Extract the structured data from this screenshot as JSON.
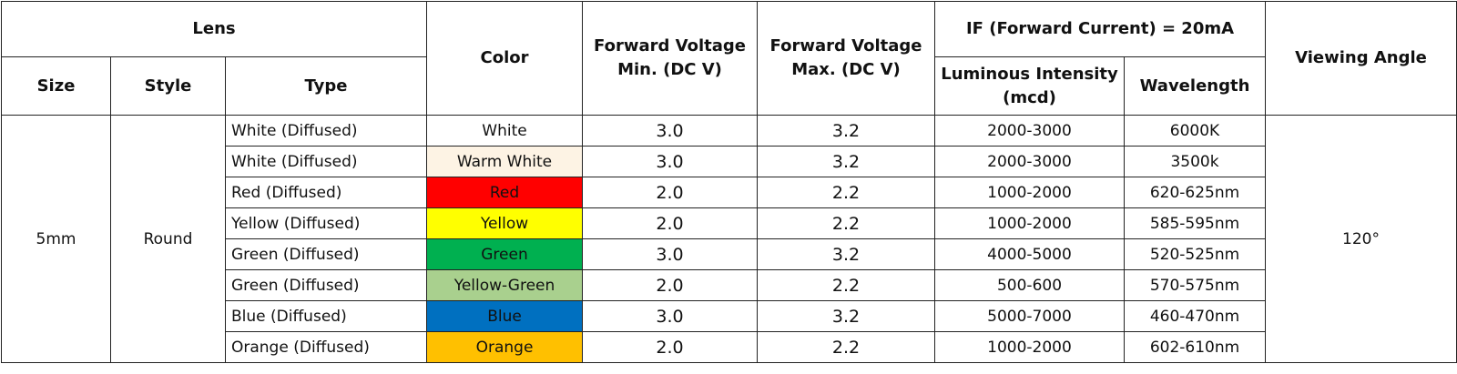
{
  "header": {
    "lens": "Lens",
    "color": "Color",
    "fv_min": "Forward Voltage Min. (DC V)",
    "fv_max": "Forward Voltage Max. (DC V)",
    "if": "IF (Forward Current) = 20mA",
    "viewing_angle": "Viewing Angle",
    "size": "Size",
    "style": "Style",
    "type": "Type",
    "intensity": "Luminous Intensity (mcd)",
    "wavelength": "Wavelength"
  },
  "table": {
    "size": "5mm",
    "style": "Round",
    "viewing_angle": "120°",
    "rows": [
      {
        "type": "White (Diffused)",
        "color": "White",
        "fill": "#ffffff",
        "fv_min": "3.0",
        "fv_max": "3.2",
        "intensity": "2000-3000",
        "wavelength": "6000K"
      },
      {
        "type": "White (Diffused)",
        "color": "Warm White",
        "fill": "#fdf3e4",
        "fv_min": "3.0",
        "fv_max": "3.2",
        "intensity": "2000-3000",
        "wavelength": "3500k"
      },
      {
        "type": "Red (Diffused)",
        "color": "Red",
        "fill": "#ff0000",
        "fv_min": "2.0",
        "fv_max": "2.2",
        "intensity": "1000-2000",
        "wavelength": "620-625nm"
      },
      {
        "type": "Yellow (Diffused)",
        "color": "Yellow",
        "fill": "#ffff00",
        "fv_min": "2.0",
        "fv_max": "2.2",
        "intensity": "1000-2000",
        "wavelength": "585-595nm"
      },
      {
        "type": "Green (Diffused)",
        "color": "Green",
        "fill": "#00b050",
        "fv_min": "3.0",
        "fv_max": "3.2",
        "intensity": "4000-5000",
        "wavelength": "520-525nm"
      },
      {
        "type": "Green (Diffused)",
        "color": "Yellow-Green",
        "fill": "#a9d08e",
        "fv_min": "2.0",
        "fv_max": "2.2",
        "intensity": "500-600",
        "wavelength": "570-575nm"
      },
      {
        "type": "Blue (Diffused)",
        "color": "Blue",
        "fill": "#0070c0",
        "fv_min": "3.0",
        "fv_max": "3.2",
        "intensity": "5000-7000",
        "wavelength": "460-470nm"
      },
      {
        "type": "Orange (Diffused)",
        "color": "Orange",
        "fill": "#ffc000",
        "fv_min": "2.0",
        "fv_max": "2.2",
        "intensity": "1000-2000",
        "wavelength": "602-610nm"
      }
    ]
  }
}
